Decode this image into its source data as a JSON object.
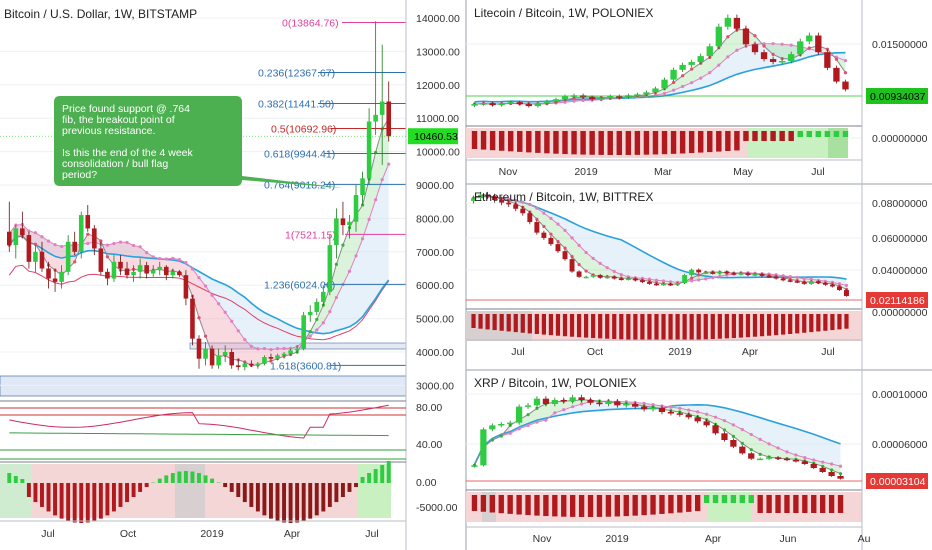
{
  "chart_data": [
    {
      "type": "candlestick",
      "title": "Bitcoin / U.S. Dollar, 1W, BITSTAMP",
      "x_labels": [
        "Jul",
        "Oct",
        "2019",
        "Apr",
        "Jul"
      ],
      "price_axis": [
        "14000.00",
        "13000.00",
        "12000.00",
        "11000.00",
        "10000.00",
        "9000.00",
        "8000.00",
        "7000.00",
        "6000.00",
        "5000.00",
        "4000.00",
        "3000.00"
      ],
      "last_price": "10460.53",
      "fib_levels": [
        {
          "label": "0(13864.76)",
          "value": 13864.76,
          "color": "#e040a0"
        },
        {
          "label": "0.236(12367.67)",
          "value": 12367.67,
          "color": "#2e6fb0"
        },
        {
          "label": "0.382(11441.50)",
          "value": 11441.5,
          "color": "#2e6fb0"
        },
        {
          "label": "0.5(10692.96)",
          "value": 10692.96,
          "color": "#c62828"
        },
        {
          "label": "0.618(9944.41)",
          "value": 9944.41,
          "color": "#2e6fb0"
        },
        {
          "label": "0.764(9018.24)",
          "value": 9018.24,
          "color": "#2e6fb0"
        },
        {
          "label": "1(7521.15)",
          "value": 7521.15,
          "color": "#e040a0"
        },
        {
          "label": "1.236(6024.06)",
          "value": 6024.06,
          "color": "#2e6fb0"
        },
        {
          "label": "1.618(3600.81)",
          "value": 3600.81,
          "color": "#2e6fb0"
        }
      ],
      "annotation": [
        "Price found support @ .764",
        "fib, the breakout point of",
        "previous resistance.",
        "",
        "Is this the end of the 4 week",
        "consolidation / bull flag",
        "period?"
      ],
      "oscillator_axis": [
        "80.00",
        "40.00"
      ],
      "histogram_axis": [
        "0.00",
        "-5000.00"
      ],
      "ohlc": [
        [
          7600,
          8500,
          7000,
          7200
        ],
        [
          7200,
          7800,
          6800,
          7700
        ],
        [
          7700,
          8200,
          7400,
          7500
        ],
        [
          7500,
          7600,
          6500,
          6700
        ],
        [
          6700,
          7200,
          6400,
          7000
        ],
        [
          7000,
          7300,
          6400,
          6500
        ],
        [
          6500,
          6700,
          5900,
          6200
        ],
        [
          6200,
          6500,
          5800,
          6100
        ],
        [
          6100,
          6600,
          5900,
          6400
        ],
        [
          6400,
          7500,
          6300,
          7300
        ],
        [
          7300,
          7600,
          6900,
          7000
        ],
        [
          7000,
          8200,
          6800,
          8100
        ],
        [
          8100,
          8400,
          7600,
          7700
        ],
        [
          7700,
          7800,
          6900,
          7100
        ],
        [
          7100,
          7300,
          6300,
          6400
        ],
        [
          6400,
          6500,
          6000,
          6200
        ],
        [
          6200,
          6900,
          6100,
          6700
        ],
        [
          6700,
          6900,
          6300,
          6500
        ],
        [
          6500,
          6700,
          6200,
          6300
        ],
        [
          6300,
          6600,
          6100,
          6400
        ],
        [
          6400,
          6800,
          6200,
          6600
        ],
        [
          6600,
          6700,
          6200,
          6350
        ],
        [
          6350,
          6600,
          6250,
          6450
        ],
        [
          6450,
          6700,
          6300,
          6550
        ],
        [
          6550,
          6600,
          6150,
          6300
        ],
        [
          6300,
          6500,
          6200,
          6400
        ],
        [
          6400,
          6450,
          6250,
          6300
        ],
        [
          6300,
          6450,
          5400,
          5600
        ],
        [
          5600,
          5700,
          4200,
          4400
        ],
        [
          4400,
          4500,
          3500,
          3800
        ],
        [
          3800,
          4300,
          3600,
          4100
        ],
        [
          4100,
          4200,
          3500,
          3600
        ],
        [
          3600,
          4100,
          3500,
          3900
        ],
        [
          3900,
          4200,
          3700,
          4000
        ],
        [
          4000,
          4100,
          3500,
          3600
        ],
        [
          3600,
          3800,
          3450,
          3550
        ],
        [
          3550,
          3700,
          3450,
          3650
        ],
        [
          3650,
          3750,
          3550,
          3600
        ],
        [
          3600,
          3700,
          3500,
          3650
        ],
        [
          3650,
          3900,
          3600,
          3850
        ],
        [
          3850,
          3950,
          3750,
          3800
        ],
        [
          3800,
          3950,
          3750,
          3900
        ],
        [
          3900,
          4000,
          3800,
          3950
        ],
        [
          3950,
          4100,
          3900,
          4050
        ],
        [
          4050,
          4200,
          3950,
          4100
        ],
        [
          4100,
          5200,
          4050,
          5100
        ],
        [
          5100,
          5400,
          4900,
          5200
        ],
        [
          5200,
          5600,
          5100,
          5500
        ],
        [
          5500,
          6000,
          5400,
          5800
        ],
        [
          5800,
          7500,
          5700,
          7200
        ],
        [
          7200,
          8300,
          6800,
          8000
        ],
        [
          8000,
          8500,
          7500,
          7800
        ],
        [
          7800,
          8100,
          7400,
          7900
        ],
        [
          7900,
          9000,
          7600,
          8700
        ],
        [
          8700,
          9400,
          8400,
          9200
        ],
        [
          9200,
          11300,
          9000,
          10900
        ],
        [
          10900,
          13900,
          10500,
          11100
        ],
        [
          11100,
          13200,
          9600,
          11500
        ],
        [
          11500,
          12100,
          10300,
          10460
        ]
      ]
    },
    {
      "type": "candlestick",
      "title": "Litecoin / Bitcoin, 1W, POLONIEX",
      "x_labels": [
        "Nov",
        "2019",
        "Mar",
        "May",
        "Jul"
      ],
      "price_axis": [
        "0.01500000",
        "0.00000000"
      ],
      "last_price": "0.00934037",
      "closes": [
        0.0078,
        0.0079,
        0.0077,
        0.0079,
        0.008,
        0.0078,
        0.0076,
        0.0079,
        0.0081,
        0.0083,
        0.0086,
        0.0087,
        0.0085,
        0.0083,
        0.0084,
        0.0086,
        0.0085,
        0.0087,
        0.0088,
        0.009,
        0.0094,
        0.0103,
        0.0113,
        0.0118,
        0.0121,
        0.0127,
        0.0137,
        0.0157,
        0.0166,
        0.0155,
        0.0139,
        0.0131,
        0.0124,
        0.0121,
        0.0122,
        0.0129,
        0.0142,
        0.0148,
        0.0131,
        0.0115,
        0.0101,
        0.0093
      ]
    },
    {
      "type": "candlestick",
      "title": "Ethereum / Bitcoin, 1W, BITTREX",
      "x_labels": [
        "Jul",
        "Oct",
        "2019",
        "Apr",
        "Jul"
      ],
      "price_axis": [
        "0.08000000",
        "0.06000000",
        "0.04000000",
        "0.00000000"
      ],
      "last_price": "0.02114186",
      "closes": [
        0.0765,
        0.0785,
        0.0775,
        0.0755,
        0.074,
        0.073,
        0.0705,
        0.068,
        0.063,
        0.057,
        0.054,
        0.0505,
        0.0465,
        0.042,
        0.035,
        0.032,
        0.032,
        0.033,
        0.0315,
        0.032,
        0.031,
        0.0305,
        0.031,
        0.03,
        0.029,
        0.028,
        0.0275,
        0.028,
        0.0275,
        0.0285,
        0.033,
        0.036,
        0.0345,
        0.0345,
        0.034,
        0.035,
        0.034,
        0.0335,
        0.034,
        0.033,
        0.0335,
        0.0325,
        0.032,
        0.031,
        0.03,
        0.0295,
        0.029,
        0.028,
        0.0295,
        0.0285,
        0.0275,
        0.0265,
        0.0245,
        0.0211
      ]
    },
    {
      "type": "candlestick",
      "title": "XRP / Bitcoin, 1W, POLONIEX",
      "x_labels": [
        "Nov",
        "2019",
        "Apr",
        "Jun",
        "Au"
      ],
      "price_axis": [
        "0.00010000",
        "0.00006000"
      ],
      "last_price": "0.00003104",
      "closes": [
        4.1e-05,
        6.8e-05,
        7.1e-05,
        7.2e-05,
        7.3e-05,
        8.5e-05,
        8.6e-05,
        9.1e-05,
        8.7e-05,
        9e-05,
        8.9e-05,
        9.2e-05,
        9e-05,
        8.8e-05,
        8.7e-05,
        8.9e-05,
        8.6e-05,
        8.7e-05,
        8.5e-05,
        8.3e-05,
        8.4e-05,
        8.1e-05,
        8e-05,
        7.9e-05,
        7.7e-05,
        7.4e-05,
        7.1e-05,
        6.5e-05,
        6e-05,
        5.5e-05,
        5e-05,
        4.6e-05,
        4.6e-05,
        4.7e-05,
        4.6e-05,
        4.5e-05,
        4.4e-05,
        4.2e-05,
        3.9e-05,
        3.6e-05,
        3.3e-05,
        3.1e-05
      ]
    }
  ]
}
